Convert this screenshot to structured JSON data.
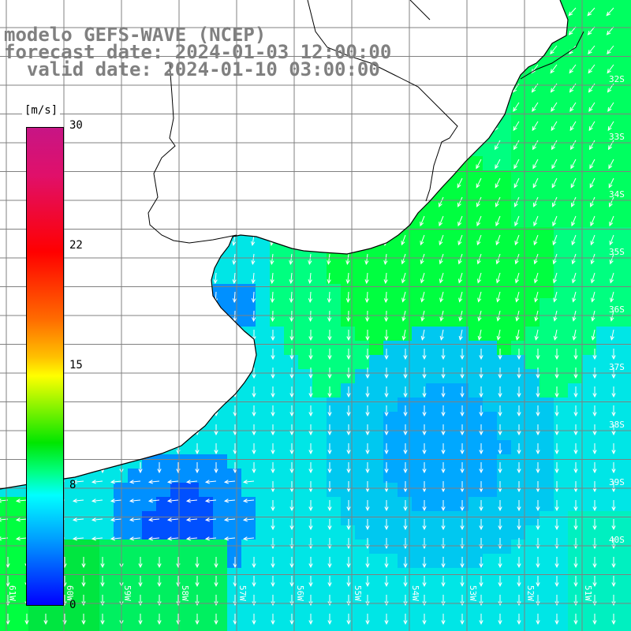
{
  "title": {
    "line1": "modelo GEFS-WAVE (NCEP)",
    "line2": "forecast date: 2024-01-03 12:00:00",
    "line3": "  valid date: 2024-01-10 03:00:00"
  },
  "colorbar": {
    "unit": "[m/s]",
    "ticks": [
      "30",
      "22",
      "15",
      "8",
      "0"
    ],
    "colors": [
      "#c71585",
      "#ff0000",
      "#ff6a00",
      "#ffff00",
      "#00e600",
      "#00ffff",
      "#00a0ff",
      "#0000ff"
    ]
  },
  "axes": {
    "lat_labels": [
      "32S",
      "33S",
      "34S",
      "35S",
      "36S",
      "37S",
      "38S",
      "39S",
      "40S"
    ],
    "lon_labels": [
      "61W",
      "60W",
      "59W",
      "58W",
      "57W",
      "56W",
      "55W",
      "54W",
      "53W",
      "52W",
      "51W"
    ]
  },
  "colors": {
    "land": "#ffffff",
    "coast": "#000000",
    "grid": "#808080",
    "arrow": "#ffffff",
    "title": "#808080"
  }
}
